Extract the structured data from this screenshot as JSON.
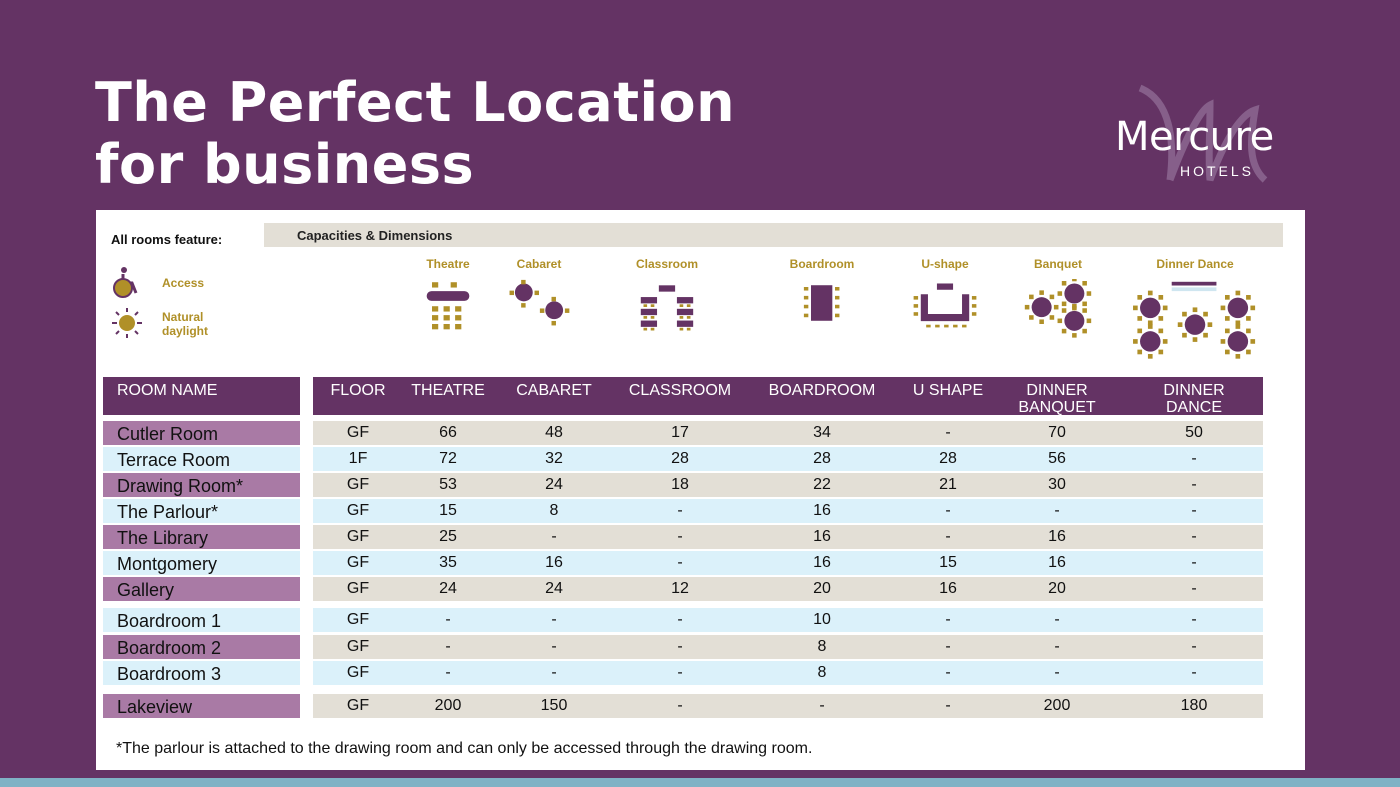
{
  "title_line1": "The Perfect Location",
  "title_line2": "for business",
  "logo": {
    "word": "Mercure",
    "sub": "HOTELS"
  },
  "features": {
    "label": "All rooms feature:",
    "access": "Access",
    "daylight_1": "Natural",
    "daylight_2": "daylight"
  },
  "capacities_title": "Capacities & Dimensions",
  "layouts": [
    "Theatre",
    "Cabaret",
    "Classroom",
    "Boardroom",
    "U-shape",
    "Banquet",
    "Dinner Dance"
  ],
  "headers": {
    "room": "ROOM NAME",
    "cols": [
      "FLOOR",
      "THEATRE",
      "CABARET",
      "CLASSROOM",
      "BOARDROOM",
      "U SHAPE",
      "DINNER BANQUET",
      "DINNER DANCE"
    ]
  },
  "rows": [
    {
      "name": "Cutler Room",
      "v": [
        "GF",
        "66",
        "48",
        "17",
        "34",
        "-",
        "70",
        "50"
      ]
    },
    {
      "name": "Terrace Room",
      "v": [
        "1F",
        "72",
        "32",
        "28",
        "28",
        "28",
        "56",
        "-"
      ]
    },
    {
      "name": "Drawing Room*",
      "v": [
        "GF",
        "53",
        "24",
        "18",
        "22",
        "21",
        "30",
        "-"
      ]
    },
    {
      "name": "The Parlour*",
      "v": [
        "GF",
        "15",
        "8",
        "-",
        "16",
        "-",
        "-",
        "-"
      ]
    },
    {
      "name": "The Library",
      "v": [
        "GF",
        "25",
        "-",
        "-",
        "16",
        "-",
        "16",
        "-"
      ]
    },
    {
      "name": "Montgomery",
      "v": [
        "GF",
        "35",
        "16",
        "-",
        "16",
        "15",
        "16",
        "-"
      ]
    },
    {
      "name": "Gallery",
      "v": [
        "GF",
        "24",
        "24",
        "12",
        "20",
        "16",
        "20",
        "-"
      ]
    },
    {
      "name": "Boardroom 1",
      "v": [
        "GF",
        "-",
        "-",
        "-",
        "10",
        "-",
        "-",
        "-"
      ]
    },
    {
      "name": "Boardroom 2",
      "v": [
        "GF",
        "-",
        "-",
        "-",
        "8",
        "-",
        "-",
        "-"
      ]
    },
    {
      "name": "Boardroom 3",
      "v": [
        "GF",
        "-",
        "-",
        "-",
        "8",
        "-",
        "-",
        "-"
      ]
    },
    {
      "name": "Lakeview",
      "v": [
        "GF",
        "200",
        "150",
        "-",
        "-",
        "-",
        "200",
        "180"
      ]
    }
  ],
  "footnote": "*The parlour is attached to the drawing room and can only be accessed through the drawing room."
}
